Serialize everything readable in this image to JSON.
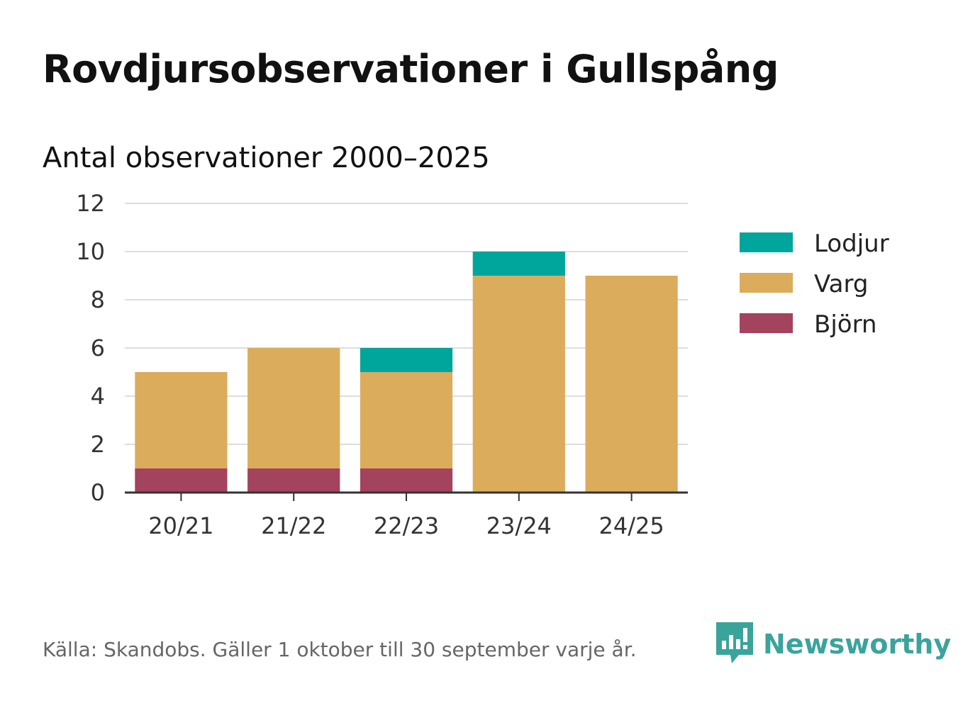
{
  "title": "Rovdjursobservationer i Gullspång",
  "subtitle": "Antal observationer 2000–2025",
  "source": "Källa: Skandobs. Gäller 1 oktober till 30 september varje år.",
  "brand": {
    "name": "Newsworthy",
    "icon": "newsworthy-logo-icon",
    "color": "#3aa49b"
  },
  "chart_data": {
    "type": "bar",
    "stacked": true,
    "title": "Rovdjursobservationer i Gullspång",
    "subtitle": "Antal observationer 2000–2025",
    "categories": [
      "20/21",
      "21/22",
      "22/23",
      "23/24",
      "24/25"
    ],
    "series": [
      {
        "name": "Björn",
        "color": "#a3435e",
        "values": [
          1,
          1,
          1,
          0,
          0
        ]
      },
      {
        "name": "Varg",
        "color": "#dbac5c",
        "values": [
          4,
          5,
          4,
          9,
          9
        ]
      },
      {
        "name": "Lodjur",
        "color": "#00a59b",
        "values": [
          0,
          0,
          1,
          1,
          0
        ]
      }
    ],
    "legend_order": [
      "Lodjur",
      "Varg",
      "Björn"
    ],
    "legend_position": "right",
    "yticks": [
      "0",
      "2",
      "4",
      "6",
      "8",
      "10",
      "12"
    ],
    "ylim": [
      0,
      12
    ],
    "grid": true,
    "xlabel": "",
    "ylabel": ""
  }
}
